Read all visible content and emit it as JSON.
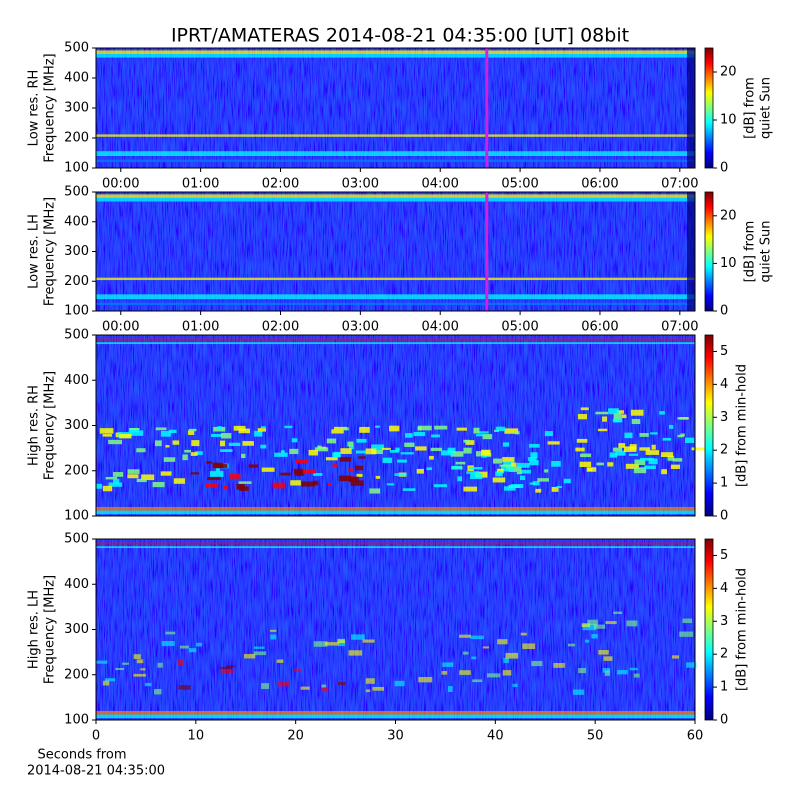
{
  "chart_data": [
    {
      "type": "heatmap",
      "title": "IPRT/AMATERAS 2014-08-21 04:35:00 [UT]   08bit",
      "ylabel": [
        "Low res. RH",
        "Frequency [MHz]"
      ],
      "xlim": [
        -0.31,
        7.19
      ],
      "xticks": [
        {
          "value": 0,
          "label": "00:00"
        },
        {
          "value": 1,
          "label": "01:00"
        },
        {
          "value": 2,
          "label": "02:00"
        },
        {
          "value": 3,
          "label": "03:00"
        },
        {
          "value": 4,
          "label": "04:00"
        },
        {
          "value": 5,
          "label": "05:00"
        },
        {
          "value": 6,
          "label": "06:00"
        },
        {
          "value": 7,
          "label": "07:00"
        }
      ],
      "ylim": [
        100,
        500
      ],
      "yticks": [
        100,
        200,
        300,
        400,
        500
      ],
      "marker": {
        "value": 4.5833,
        "color": "#d020e0"
      },
      "colormap": "jet",
      "clim": [
        0,
        25
      ],
      "cticks": [
        0,
        10,
        20
      ],
      "clabel": [
        "[dB] from",
        "quiet Sun"
      ]
    },
    {
      "type": "heatmap",
      "ylabel": [
        "Low res. LH",
        "Frequency [MHz]"
      ],
      "xlim": [
        -0.31,
        7.19
      ],
      "xticks": [
        {
          "value": 0,
          "label": "00:00"
        },
        {
          "value": 1,
          "label": "01:00"
        },
        {
          "value": 2,
          "label": "02:00"
        },
        {
          "value": 3,
          "label": "03:00"
        },
        {
          "value": 4,
          "label": "04:00"
        },
        {
          "value": 5,
          "label": "05:00"
        },
        {
          "value": 6,
          "label": "06:00"
        },
        {
          "value": 7,
          "label": "07:00"
        }
      ],
      "ylim": [
        100,
        500
      ],
      "yticks": [
        100,
        200,
        300,
        400,
        500
      ],
      "marker": {
        "value": 4.5833,
        "color": "#d020e0"
      },
      "colormap": "jet",
      "clim": [
        0,
        25
      ],
      "cticks": [
        0,
        10,
        20
      ],
      "clabel": [
        "[dB] from",
        "quiet Sun"
      ]
    },
    {
      "type": "heatmap",
      "ylabel": [
        "High res. RH",
        "Frequency [MHz]"
      ],
      "xlim": [
        0,
        60
      ],
      "ylim": [
        100,
        500
      ],
      "yticks": [
        100,
        200,
        300,
        400,
        500
      ],
      "colormap": "jet",
      "clim": [
        0,
        5.5
      ],
      "cticks": [
        0,
        1,
        2,
        3,
        4,
        5
      ],
      "clabel": [
        "[dB] from min-hold"
      ]
    },
    {
      "type": "heatmap",
      "ylabel": [
        "High res. LH",
        "Frequency [MHz]"
      ],
      "xlabel": [
        "Seconds from",
        "2014-08-21 04:35:00"
      ],
      "xlim": [
        0,
        60
      ],
      "xticks": [
        0,
        10,
        20,
        30,
        40,
        50,
        60
      ],
      "ylim": [
        100,
        500
      ],
      "yticks": [
        100,
        200,
        300,
        400,
        500
      ],
      "colormap": "jet",
      "clim": [
        0,
        5.5
      ],
      "cticks": [
        0,
        1,
        2,
        3,
        4,
        5
      ],
      "clabel": [
        "[dB] from min-hold"
      ]
    }
  ]
}
